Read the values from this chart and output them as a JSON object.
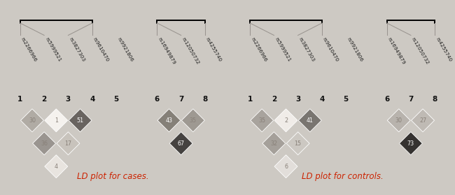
{
  "snp_labels": [
    "rs2266966",
    "rs5999521",
    "rs3827303",
    "rs9610470",
    "rs9921806",
    "rs16949879",
    "rs12050732",
    "rs4255740"
  ],
  "numbers": [
    1,
    2,
    3,
    4,
    5,
    6,
    7,
    8
  ],
  "bg_color": "#cdc9c3",
  "title_cases": "LD plot for cases.",
  "title_controls": "LD plot for controls.",
  "title_color": "#cc2200",
  "cases_diamonds": [
    {
      "r": 0,
      "c": 1,
      "val": 30,
      "color": "#b0aba4"
    },
    {
      "r": 0,
      "c": 2,
      "val": 36,
      "color": "#9a9590"
    },
    {
      "r": 0,
      "c": 3,
      "val": 4,
      "color": "#e8e4df"
    },
    {
      "r": 1,
      "c": 2,
      "val": 1,
      "color": "#f5f2ee"
    },
    {
      "r": 1,
      "c": 3,
      "val": 17,
      "color": "#c8c3bc"
    },
    {
      "r": 2,
      "c": 3,
      "val": 51,
      "color": "#696460"
    },
    {
      "r": 5,
      "c": 6,
      "val": 43,
      "color": "#858078"
    },
    {
      "r": 5,
      "c": 7,
      "val": 67,
      "color": "#454240"
    },
    {
      "r": 6,
      "c": 7,
      "val": 35,
      "color": "#9e9992"
    }
  ],
  "controls_diamonds": [
    {
      "r": 0,
      "c": 1,
      "val": 35,
      "color": "#a8a39d"
    },
    {
      "r": 0,
      "c": 2,
      "val": 32,
      "color": "#a5a09a"
    },
    {
      "r": 0,
      "c": 3,
      "val": 6,
      "color": "#e2deda"
    },
    {
      "r": 1,
      "c": 2,
      "val": 2,
      "color": "#f0ece8"
    },
    {
      "r": 1,
      "c": 3,
      "val": 15,
      "color": "#ccc8c2"
    },
    {
      "r": 2,
      "c": 3,
      "val": 41,
      "color": "#797570"
    },
    {
      "r": 5,
      "c": 6,
      "val": 30,
      "color": "#b8b3ad"
    },
    {
      "r": 5,
      "c": 7,
      "val": 73,
      "color": "#353230"
    },
    {
      "r": 6,
      "c": 7,
      "val": 27,
      "color": "#bfbab4"
    }
  ],
  "snp_positions": [
    0,
    1,
    2,
    3,
    4,
    5.7,
    6.7,
    7.7
  ],
  "block1": [
    0,
    3
  ],
  "block2": [
    5,
    7
  ]
}
